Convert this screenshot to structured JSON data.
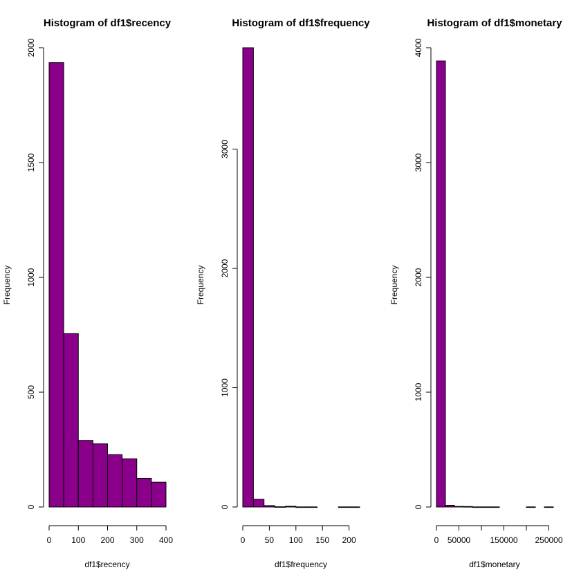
{
  "colors": {
    "bar_fill": "#8B008B",
    "bar_stroke": "#000000",
    "background": "#ffffff"
  },
  "chart_data": [
    {
      "type": "bar",
      "title": "Histogram of df1$recency",
      "xlabel": "df1$recency",
      "ylabel": "Frequency",
      "xlim": [
        0,
        400
      ],
      "ylim": [
        0,
        2000
      ],
      "xticks": [
        0,
        100,
        200,
        300,
        400
      ],
      "yticks": [
        0,
        500,
        1000,
        1500,
        2000
      ],
      "bins": [
        {
          "start": 0,
          "end": 50,
          "count": 1935
        },
        {
          "start": 50,
          "end": 100,
          "count": 755
        },
        {
          "start": 100,
          "end": 150,
          "count": 290
        },
        {
          "start": 150,
          "end": 200,
          "count": 275
        },
        {
          "start": 200,
          "end": 250,
          "count": 228
        },
        {
          "start": 250,
          "end": 300,
          "count": 210
        },
        {
          "start": 300,
          "end": 350,
          "count": 125
        },
        {
          "start": 350,
          "end": 400,
          "count": 108
        }
      ]
    },
    {
      "type": "bar",
      "title": "Histogram of df1$frequency",
      "xlabel": "df1$frequency",
      "ylabel": "Frequency",
      "xlim": [
        0,
        220
      ],
      "ylim": [
        0,
        3850
      ],
      "xticks": [
        0,
        50,
        100,
        150,
        200
      ],
      "yticks": [
        0,
        1000,
        2000,
        3000
      ],
      "bins": [
        {
          "start": 0,
          "end": 20,
          "count": 3850
        },
        {
          "start": 20,
          "end": 40,
          "count": 65
        },
        {
          "start": 40,
          "end": 60,
          "count": 12
        },
        {
          "start": 60,
          "end": 80,
          "count": 2
        },
        {
          "start": 80,
          "end": 100,
          "count": 6
        },
        {
          "start": 100,
          "end": 120,
          "count": 1
        },
        {
          "start": 120,
          "end": 140,
          "count": 1
        },
        {
          "start": 140,
          "end": 160,
          "count": 0
        },
        {
          "start": 160,
          "end": 180,
          "count": 0
        },
        {
          "start": 180,
          "end": 200,
          "count": 1
        },
        {
          "start": 200,
          "end": 220,
          "count": 1
        }
      ]
    },
    {
      "type": "bar",
      "title": "Histogram of df1$monetary",
      "xlabel": "df1$monetary",
      "ylabel": "Frequency",
      "xlim": [
        0,
        260000
      ],
      "ylim": [
        0,
        4000
      ],
      "xticks": [
        0,
        50000,
        100000,
        150000,
        200000,
        250000
      ],
      "xtick_labels": [
        "0",
        "50000",
        "",
        "150000",
        "",
        "250000"
      ],
      "yticks": [
        0,
        1000,
        2000,
        3000,
        4000
      ],
      "bins": [
        {
          "start": 0,
          "end": 20000,
          "count": 3885
        },
        {
          "start": 20000,
          "end": 40000,
          "count": 15
        },
        {
          "start": 40000,
          "end": 60000,
          "count": 5
        },
        {
          "start": 60000,
          "end": 80000,
          "count": 4
        },
        {
          "start": 80000,
          "end": 100000,
          "count": 1
        },
        {
          "start": 100000,
          "end": 120000,
          "count": 1
        },
        {
          "start": 120000,
          "end": 140000,
          "count": 1
        },
        {
          "start": 140000,
          "end": 160000,
          "count": 0
        },
        {
          "start": 160000,
          "end": 180000,
          "count": 0
        },
        {
          "start": 180000,
          "end": 200000,
          "count": 0
        },
        {
          "start": 200000,
          "end": 220000,
          "count": 1
        },
        {
          "start": 220000,
          "end": 240000,
          "count": 0
        },
        {
          "start": 240000,
          "end": 260000,
          "count": 1
        }
      ]
    }
  ]
}
